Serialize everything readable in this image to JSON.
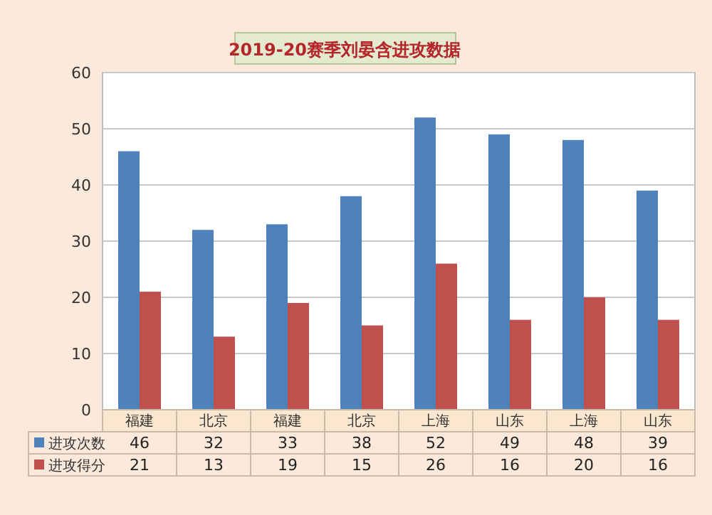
{
  "chart_data": {
    "type": "bar",
    "title": "2019-20赛季刘晏含进攻数据",
    "categories": [
      "福建",
      "北京",
      "福建",
      "北京",
      "上海",
      "山东",
      "上海",
      "山东"
    ],
    "series": [
      {
        "name": "进攻次数",
        "color": "#4f81bd",
        "values": [
          46,
          32,
          33,
          38,
          52,
          49,
          48,
          39
        ]
      },
      {
        "name": "进攻得分",
        "color": "#c0504d",
        "values": [
          21,
          13,
          19,
          15,
          26,
          16,
          20,
          16
        ]
      }
    ],
    "ylim": [
      0,
      60
    ],
    "yticks": [
      0,
      10,
      20,
      30,
      40,
      50,
      60
    ],
    "grid": "y",
    "legend": "bottom",
    "data_labels": true
  }
}
